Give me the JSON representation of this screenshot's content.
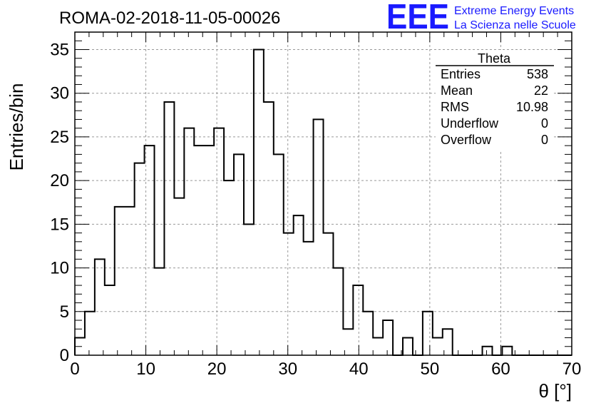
{
  "header": {
    "run_title": "ROMA-02-2018-11-05-00026",
    "logo_text": "EEE",
    "logo_line1": "Extreme Energy Events",
    "logo_line2": "La Scienza nelle Scuole",
    "logo_color": "#1a1aff"
  },
  "stats": {
    "title": "Theta",
    "rows": [
      {
        "label": "Entries",
        "value": "538"
      },
      {
        "label": "Mean",
        "value": "22"
      },
      {
        "label": "RMS",
        "value": "10.98"
      },
      {
        "label": "Underflow",
        "value": "0"
      },
      {
        "label": "Overflow",
        "value": "0"
      }
    ]
  },
  "chart_data": {
    "type": "bar",
    "style": "step-histogram",
    "title": "ROMA-02-2018-11-05-00026",
    "xlabel": "θ [°]",
    "ylabel": "Entries/bin",
    "xlim": [
      0,
      70
    ],
    "ylim": [
      0,
      37
    ],
    "bin_width": 1.4,
    "bin_start": 0,
    "x_ticks": [
      0,
      10,
      20,
      30,
      40,
      50,
      60,
      70
    ],
    "y_ticks": [
      0,
      5,
      10,
      15,
      20,
      25,
      30,
      35
    ],
    "grid": true,
    "line_color": "#000000",
    "values": [
      2,
      5,
      11,
      8,
      17,
      17,
      22,
      24,
      10,
      29,
      18,
      26,
      24,
      24,
      26,
      20,
      23,
      15,
      35,
      29,
      23,
      14,
      16,
      13,
      27,
      14,
      10,
      3,
      8,
      5,
      2,
      4,
      0,
      2,
      0,
      5,
      2,
      3,
      0,
      0,
      0,
      1,
      0,
      1,
      0,
      0,
      0,
      0,
      0,
      0
    ]
  }
}
